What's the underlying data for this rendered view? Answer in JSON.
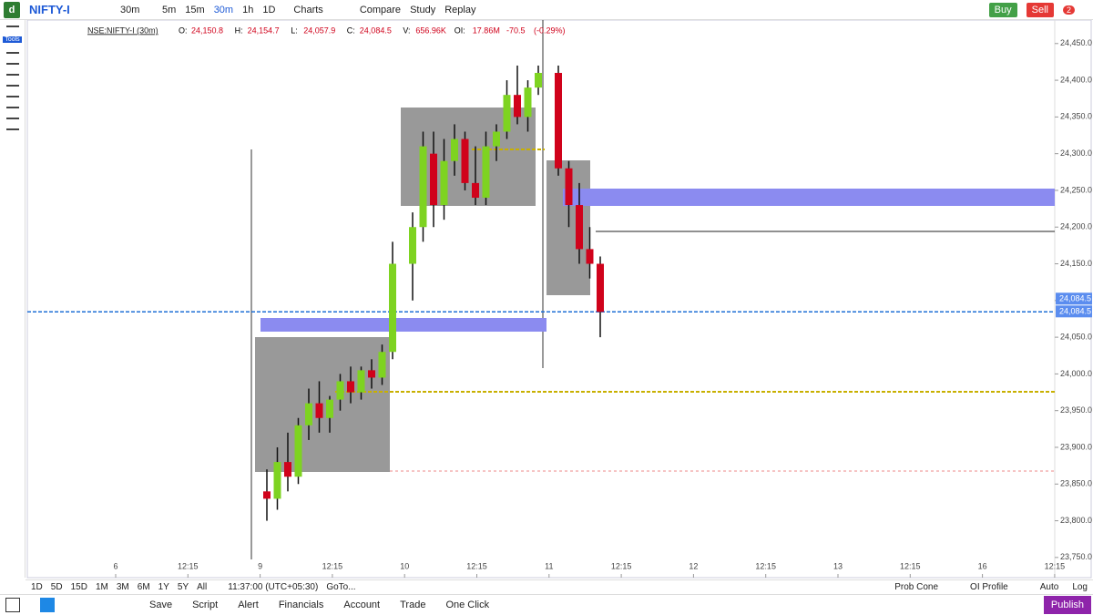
{
  "header": {
    "symbol": "NIFTY-I",
    "interval": "30m",
    "intervals": [
      "5m",
      "15m",
      "30m",
      "1h",
      "1D"
    ],
    "menus": [
      "Charts",
      "Compare",
      "Study",
      "Replay"
    ],
    "buy": "Buy",
    "sell": "Sell",
    "notifications": "2"
  },
  "tools_label": "Tools",
  "legend": {
    "symbol": "NSE:NIFTY-I (30m)",
    "fields": [
      {
        "label": "O:",
        "value": "24,150.8"
      },
      {
        "label": "H:",
        "value": "24,154.7"
      },
      {
        "label": "L:",
        "value": "24,057.9"
      },
      {
        "label": "C:",
        "value": "24,084.5"
      },
      {
        "label": "V:",
        "value": "656.96K"
      },
      {
        "label": "OI:",
        "value": "17.86M"
      }
    ],
    "change": "-70.5",
    "change_pct": "(-0.29%)"
  },
  "chart": {
    "type": "candlestick",
    "colors": {
      "up": "#7ed321",
      "down": "#d0021b"
    },
    "ylim": [
      23725,
      24482
    ],
    "yticks": [
      {
        "value": 24450,
        "label": "24,450.0"
      },
      {
        "value": 24400,
        "label": "24,400.0"
      },
      {
        "value": 24350,
        "label": "24,350.0"
      },
      {
        "value": 24300,
        "label": "24,300.0"
      },
      {
        "value": 24250,
        "label": "24,250.0"
      },
      {
        "value": 24200,
        "label": "24,200.0"
      },
      {
        "value": 24150,
        "label": "24,150.0"
      },
      {
        "value": 24100,
        "label": "24,100.0"
      },
      {
        "value": 24050,
        "label": "24,050.0"
      },
      {
        "value": 24000,
        "label": "24,000.0"
      },
      {
        "value": 23950,
        "label": "23,950.0"
      },
      {
        "value": 23900,
        "label": "23,900.0"
      },
      {
        "value": 23850,
        "label": "23,850.0"
      },
      {
        "value": 23800,
        "label": "23,800.0"
      },
      {
        "value": 23750,
        "label": "23,750.0"
      }
    ],
    "xticks": [
      "6",
      "12:15",
      "9",
      "12:15",
      "10",
      "12:15",
      "11",
      "12:15",
      "12",
      "12:15",
      "13",
      "12:15",
      "16",
      "12:15"
    ],
    "last_price": {
      "value": 24084.5,
      "label": "24,084.5"
    },
    "candles": [
      {
        "o": 23840,
        "h": 23870,
        "l": 23800,
        "c": 23830
      },
      {
        "o": 23830,
        "h": 23900,
        "l": 23815,
        "c": 23880
      },
      {
        "o": 23880,
        "h": 23920,
        "l": 23840,
        "c": 23860
      },
      {
        "o": 23860,
        "h": 23940,
        "l": 23850,
        "c": 23930
      },
      {
        "o": 23930,
        "h": 23980,
        "l": 23910,
        "c": 23960
      },
      {
        "o": 23960,
        "h": 23990,
        "l": 23920,
        "c": 23940
      },
      {
        "o": 23940,
        "h": 23970,
        "l": 23920,
        "c": 23965
      },
      {
        "o": 23965,
        "h": 24000,
        "l": 23950,
        "c": 23990
      },
      {
        "o": 23990,
        "h": 24010,
        "l": 23960,
        "c": 23975
      },
      {
        "o": 23975,
        "h": 24010,
        "l": 23965,
        "c": 24005
      },
      {
        "o": 24005,
        "h": 24020,
        "l": 23980,
        "c": 23995
      },
      {
        "o": 23995,
        "h": 24040,
        "l": 23985,
        "c": 24030
      },
      {
        "o": 24030,
        "h": 24180,
        "l": 24020,
        "c": 24150
      },
      {
        "o": 24150,
        "h": 24220,
        "l": 24100,
        "c": 24200
      },
      {
        "o": 24200,
        "h": 24330,
        "l": 24180,
        "c": 24310
      },
      {
        "o": 24300,
        "h": 24330,
        "l": 24200,
        "c": 24230
      },
      {
        "o": 24230,
        "h": 24320,
        "l": 24210,
        "c": 24290
      },
      {
        "o": 24290,
        "h": 24340,
        "l": 24270,
        "c": 24320
      },
      {
        "o": 24320,
        "h": 24330,
        "l": 24250,
        "c": 24260
      },
      {
        "o": 24260,
        "h": 24310,
        "l": 24230,
        "c": 24240
      },
      {
        "o": 24240,
        "h": 24330,
        "l": 24230,
        "c": 24310
      },
      {
        "o": 24310,
        "h": 24340,
        "l": 24290,
        "c": 24330
      },
      {
        "o": 24330,
        "h": 24400,
        "l": 24320,
        "c": 24380
      },
      {
        "o": 24380,
        "h": 24420,
        "l": 24340,
        "c": 24350
      },
      {
        "o": 24350,
        "h": 24400,
        "l": 24330,
        "c": 24390
      },
      {
        "o": 24390,
        "h": 24420,
        "l": 24380,
        "c": 24410
      },
      {
        "o": 24410,
        "h": 24420,
        "l": 24270,
        "c": 24280
      },
      {
        "o": 24280,
        "h": 24290,
        "l": 24200,
        "c": 24230
      },
      {
        "o": 24230,
        "h": 24260,
        "l": 24150,
        "c": 24170
      },
      {
        "o": 24170,
        "h": 24200,
        "l": 24130,
        "c": 24150
      },
      {
        "o": 24150,
        "h": 24160,
        "l": 24050,
        "c": 24084.5
      }
    ]
  },
  "range_buttons": [
    "1D",
    "5D",
    "15D",
    "1M",
    "3M",
    "6M",
    "1Y",
    "5Y",
    "All"
  ],
  "time": "11:37:00 (UTC+05:30)",
  "goto": "GoTo...",
  "right_options": [
    "Prob Cone",
    "OI Profile",
    "Auto",
    "Log"
  ],
  "bottom_toolbar": [
    "Save",
    "Script",
    "Alert",
    "Financials",
    "Account",
    "Trade",
    "One Click"
  ],
  "publish": "Publish"
}
